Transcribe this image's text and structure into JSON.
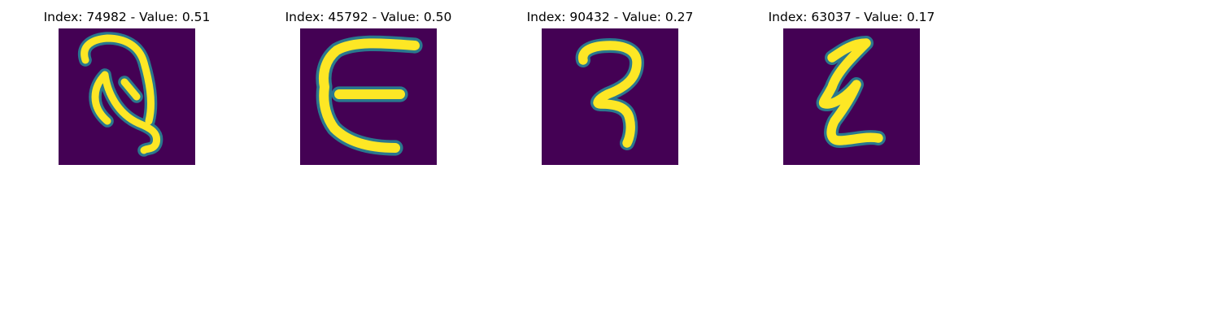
{
  "colors": {
    "tile_background": "#440154",
    "stroke_core": "#fde725",
    "stroke_mid": "#22a884",
    "stroke_edge": "#2a788e"
  },
  "panels": [
    {
      "title": "Index: 74982 - Value: 0.51",
      "glyph": "handwritten-q-like-glyph"
    },
    {
      "title": "Index: 45792 - Value: 0.50",
      "glyph": "handwritten-e-like-glyph"
    },
    {
      "title": "Index: 90432 - Value: 0.27",
      "glyph": "handwritten-3-like-glyph"
    },
    {
      "title": "Index: 63037 - Value: 0.17",
      "glyph": "handwritten-z-like-glyph"
    }
  ]
}
